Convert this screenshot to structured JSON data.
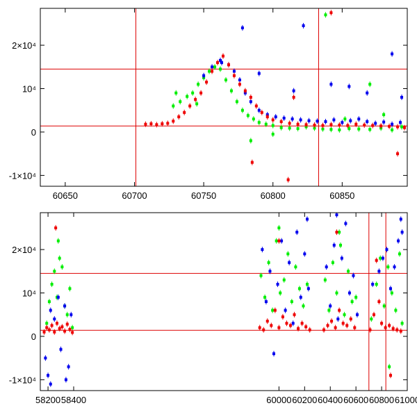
{
  "chart_data": [
    {
      "type": "scatter",
      "xlim": [
        60632,
        60897
      ],
      "ylim": [
        -12500,
        28500
      ],
      "xticks": [
        60650,
        60700,
        60750,
        60800,
        60850
      ],
      "xtick_labels": [
        "60650",
        "60700",
        "60750",
        "60800",
        "60850"
      ],
      "yticks": [
        -10000,
        0,
        10000,
        20000
      ],
      "ytick_labels": [
        "-1×10⁴",
        "0",
        "10⁴",
        "2×10⁴"
      ],
      "hlines": [
        14500,
        1400
      ],
      "vlines": [
        60701,
        60833
      ],
      "series": [
        {
          "color": "#00ee00",
          "x": [
            60728,
            60733,
            60738,
            60742,
            60746,
            60750,
            60754,
            60758,
            60762,
            60766,
            60770,
            60774,
            60778,
            60782,
            60786,
            60790,
            60795,
            60800,
            60806,
            60812,
            60818,
            60824,
            60830,
            60836,
            60842,
            60848,
            60855,
            60862,
            60870,
            60878,
            60886,
            60893,
            60784,
            60800,
            60852,
            60730,
            60745,
            60880,
            60838,
            60870
          ],
          "y": [
            6000,
            7000,
            8200,
            9000,
            11000,
            12500,
            14000,
            15000,
            14500,
            12000,
            9500,
            7000,
            5000,
            3800,
            3000,
            2200,
            1800,
            1500,
            1000,
            900,
            800,
            1200,
            900,
            700,
            600,
            500,
            800,
            700,
            600,
            900,
            500,
            1200,
            -2000,
            -500,
            3000,
            9000,
            6500,
            4000,
            27000,
            11000
          ]
        },
        {
          "color": "#0000ee",
          "x": [
            60750,
            60756,
            60762,
            60768,
            60772,
            60776,
            60780,
            60784,
            60790,
            60796,
            60802,
            60808,
            60814,
            60820,
            60826,
            60832,
            60838,
            60844,
            60850,
            60856,
            60862,
            60868,
            60874,
            60880,
            60886,
            60892,
            60778,
            60790,
            60815,
            60842,
            60855,
            60868,
            60886,
            60893,
            60763,
            60822
          ],
          "y": [
            13000,
            15000,
            16500,
            15500,
            14000,
            12000,
            9000,
            7000,
            5000,
            4000,
            3500,
            3200,
            3000,
            2800,
            2600,
            2500,
            2400,
            2800,
            2200,
            2600,
            3000,
            2400,
            2000,
            2300,
            1800,
            2200,
            24000,
            13500,
            9500,
            11000,
            10500,
            9000,
            18000,
            8000,
            16000,
            24500
          ]
        },
        {
          "color": "#ee0000",
          "x": [
            60708,
            60712,
            60716,
            60720,
            60724,
            60728,
            60732,
            60736,
            60740,
            60744,
            60748,
            60752,
            60756,
            60760,
            60764,
            60768,
            60772,
            60776,
            60780,
            60784,
            60788,
            60792,
            60796,
            60800,
            60806,
            60812,
            60818,
            60824,
            60830,
            60836,
            60842,
            60848,
            60854,
            60860,
            60866,
            60872,
            60878,
            60884,
            60890,
            60895,
            60785,
            60811,
            60890,
            60842,
            60815
          ],
          "y": [
            1800,
            1900,
            1700,
            1900,
            2000,
            2500,
            3500,
            4500,
            6000,
            7500,
            9000,
            11500,
            14000,
            16000,
            17500,
            15500,
            13000,
            11000,
            9500,
            8000,
            6000,
            4500,
            3500,
            2800,
            2400,
            2000,
            1800,
            1700,
            1600,
            1500,
            1700,
            1600,
            1500,
            1800,
            1600,
            1500,
            1400,
            1300,
            1200,
            1000,
            -7000,
            -11000,
            -5000,
            27500,
            8000
          ]
        }
      ]
    },
    {
      "type": "scatter",
      "xlim": [
        58140,
        61000
      ],
      "ylim": [
        -12500,
        28500
      ],
      "xticks": [
        58200,
        58400,
        60000,
        60200,
        60400,
        60600,
        60800,
        61000
      ],
      "xtick_labels": [
        "58200",
        "58400",
        "60000",
        "60200",
        "60400",
        "60600",
        "60800",
        "61000"
      ],
      "yticks": [
        -10000,
        0,
        10000,
        20000
      ],
      "ytick_labels": [
        "-1×10⁴",
        "0",
        "10⁴",
        "2×10⁴"
      ],
      "hlines": [
        14500,
        1400
      ],
      "vlines": [
        60701,
        60833
      ],
      "series": [
        {
          "color": "#00ee00",
          "x": [
            58190,
            58210,
            58230,
            58250,
            58270,
            58290,
            58310,
            58330,
            58350,
            58370,
            58390,
            59860,
            59890,
            59920,
            59950,
            59980,
            60010,
            60040,
            60070,
            60100,
            60130,
            60160,
            60190,
            60220,
            60360,
            60390,
            60420,
            60450,
            60480,
            60510,
            60540,
            60570,
            60600,
            60720,
            60760,
            60790,
            60820,
            60850,
            60880,
            60910,
            60940,
            60960,
            58280,
            60000,
            60470,
            60860
          ],
          "y": [
            3000,
            8000,
            12000,
            15000,
            9000,
            18000,
            16000,
            7000,
            5000,
            11000,
            2000,
            14000,
            9000,
            17000,
            6000,
            22000,
            10000,
            13000,
            19000,
            8000,
            16000,
            11000,
            7000,
            12000,
            13000,
            6000,
            17000,
            10000,
            21000,
            5000,
            15000,
            8000,
            9000,
            4000,
            12000,
            18000,
            7000,
            16000,
            10000,
            6000,
            19000,
            3000,
            22000,
            25000,
            24000,
            -7000
          ]
        },
        {
          "color": "#0000ee",
          "x": [
            58180,
            58200,
            58220,
            58250,
            58280,
            58300,
            58330,
            58360,
            58380,
            59870,
            59900,
            59930,
            59960,
            59990,
            60020,
            60050,
            60080,
            60110,
            60140,
            60170,
            60200,
            60230,
            60370,
            60400,
            60430,
            60460,
            60490,
            60520,
            60550,
            60580,
            60610,
            60730,
            60780,
            60810,
            60840,
            60870,
            60900,
            60930,
            60960,
            58220,
            58340,
            60220,
            60450,
            60950
          ],
          "y": [
            -5000,
            -9000,
            6000,
            4000,
            9000,
            -3000,
            7000,
            -7000,
            5000,
            20000,
            8000,
            15000,
            -4000,
            12000,
            22000,
            6000,
            17000,
            3000,
            24000,
            9000,
            19000,
            11000,
            16000,
            7000,
            21000,
            4000,
            18000,
            26000,
            10000,
            14000,
            5000,
            12000,
            15000,
            18000,
            20000,
            11000,
            16000,
            22000,
            24000,
            -11000,
            -10000,
            27000,
            28000,
            27000
          ]
        },
        {
          "color": "#ee0000",
          "x": [
            58170,
            58190,
            58210,
            58230,
            58250,
            58270,
            58290,
            58310,
            58330,
            58350,
            58370,
            58390,
            59850,
            59880,
            59910,
            59940,
            59970,
            60000,
            60030,
            60060,
            60090,
            60120,
            60150,
            60180,
            60210,
            60240,
            60350,
            60380,
            60410,
            60440,
            60470,
            60500,
            60530,
            60560,
            60590,
            60710,
            60740,
            60760,
            60780,
            60800,
            60830,
            60860,
            60890,
            60920,
            60950,
            58260,
            60000,
            60450,
            60870
          ],
          "y": [
            1000,
            2000,
            1500,
            2500,
            1000,
            3000,
            1800,
            2200,
            1200,
            2800,
            1600,
            900,
            2000,
            1500,
            3500,
            2500,
            6000,
            2000,
            4500,
            3000,
            2500,
            5000,
            1800,
            3000,
            2200,
            1500,
            1500,
            2500,
            3500,
            2000,
            6000,
            3000,
            2500,
            4000,
            2000,
            1500,
            5000,
            17500,
            8000,
            3000,
            2000,
            2500,
            1800,
            1500,
            1200,
            25000,
            22000,
            24000,
            -9000
          ]
        }
      ]
    }
  ]
}
